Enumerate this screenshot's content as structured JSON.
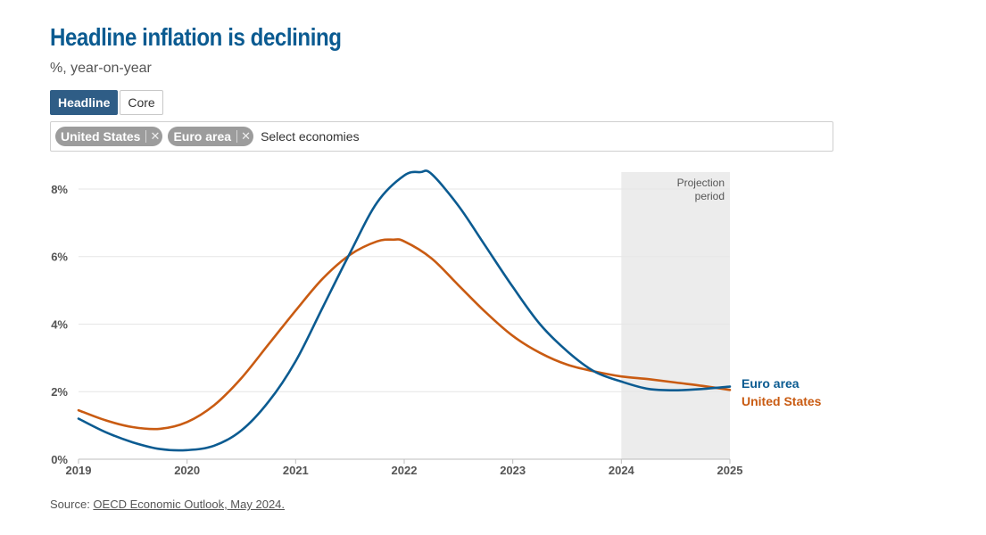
{
  "header": {
    "title": "Headline inflation is declining",
    "subtitle": "%, year-on-year"
  },
  "tabs": [
    {
      "label": "Headline",
      "active": true
    },
    {
      "label": "Core",
      "active": false
    }
  ],
  "selector": {
    "chips": [
      {
        "label": "United States",
        "remove_icon": "close-icon"
      },
      {
        "label": "Euro area",
        "remove_icon": "close-icon"
      }
    ],
    "placeholder": "Select economies"
  },
  "source": {
    "prefix": "Source: ",
    "link_text": "OECD Economic Outlook, May 2024."
  },
  "chart_data": {
    "type": "line",
    "title": "Headline inflation is declining",
    "ylabel": "%, year-on-year",
    "xlim": [
      2019,
      2025
    ],
    "ylim": [
      0,
      8.5
    ],
    "yticks": [
      {
        "value": 0,
        "label": "0%"
      },
      {
        "value": 2,
        "label": "2%"
      },
      {
        "value": 4,
        "label": "4%"
      },
      {
        "value": 6,
        "label": "6%"
      },
      {
        "value": 8,
        "label": "8%"
      }
    ],
    "xticks": [
      {
        "value": 2019,
        "label": "2019"
      },
      {
        "value": 2020,
        "label": "2020"
      },
      {
        "value": 2021,
        "label": "2021"
      },
      {
        "value": 2022,
        "label": "2022"
      },
      {
        "value": 2023,
        "label": "2023"
      },
      {
        "value": 2024,
        "label": "2024"
      },
      {
        "value": 2025,
        "label": "2025"
      }
    ],
    "grid": true,
    "projection": {
      "start": 2024,
      "end": 2025,
      "label_lines": [
        "Projection",
        "period"
      ],
      "color": "#ececec"
    },
    "series": [
      {
        "name": "Euro area",
        "color": "#0b5b91",
        "points": [
          [
            2019.0,
            1.2
          ],
          [
            2019.25,
            0.8
          ],
          [
            2019.5,
            0.5
          ],
          [
            2019.75,
            0.3
          ],
          [
            2020.0,
            0.27
          ],
          [
            2020.25,
            0.4
          ],
          [
            2020.5,
            0.85
          ],
          [
            2020.75,
            1.7
          ],
          [
            2021.0,
            2.9
          ],
          [
            2021.25,
            4.5
          ],
          [
            2021.5,
            6.1
          ],
          [
            2021.75,
            7.6
          ],
          [
            2022.0,
            8.4
          ],
          [
            2022.15,
            8.5
          ],
          [
            2022.25,
            8.45
          ],
          [
            2022.5,
            7.5
          ],
          [
            2022.75,
            6.3
          ],
          [
            2023.0,
            5.1
          ],
          [
            2023.25,
            4.0
          ],
          [
            2023.5,
            3.2
          ],
          [
            2023.75,
            2.6
          ],
          [
            2024.0,
            2.3
          ],
          [
            2024.25,
            2.08
          ],
          [
            2024.5,
            2.04
          ],
          [
            2024.75,
            2.08
          ],
          [
            2025.0,
            2.15
          ]
        ]
      },
      {
        "name": "United States",
        "color": "#c95b12",
        "points": [
          [
            2019.0,
            1.45
          ],
          [
            2019.25,
            1.15
          ],
          [
            2019.5,
            0.95
          ],
          [
            2019.75,
            0.9
          ],
          [
            2020.0,
            1.1
          ],
          [
            2020.25,
            1.6
          ],
          [
            2020.5,
            2.4
          ],
          [
            2020.75,
            3.4
          ],
          [
            2021.0,
            4.4
          ],
          [
            2021.25,
            5.35
          ],
          [
            2021.5,
            6.05
          ],
          [
            2021.75,
            6.45
          ],
          [
            2021.9,
            6.5
          ],
          [
            2022.0,
            6.45
          ],
          [
            2022.25,
            5.95
          ],
          [
            2022.5,
            5.15
          ],
          [
            2022.75,
            4.35
          ],
          [
            2023.0,
            3.65
          ],
          [
            2023.25,
            3.15
          ],
          [
            2023.5,
            2.8
          ],
          [
            2023.75,
            2.6
          ],
          [
            2024.0,
            2.45
          ],
          [
            2024.25,
            2.37
          ],
          [
            2024.5,
            2.27
          ],
          [
            2024.75,
            2.17
          ],
          [
            2025.0,
            2.05
          ]
        ]
      }
    ]
  }
}
